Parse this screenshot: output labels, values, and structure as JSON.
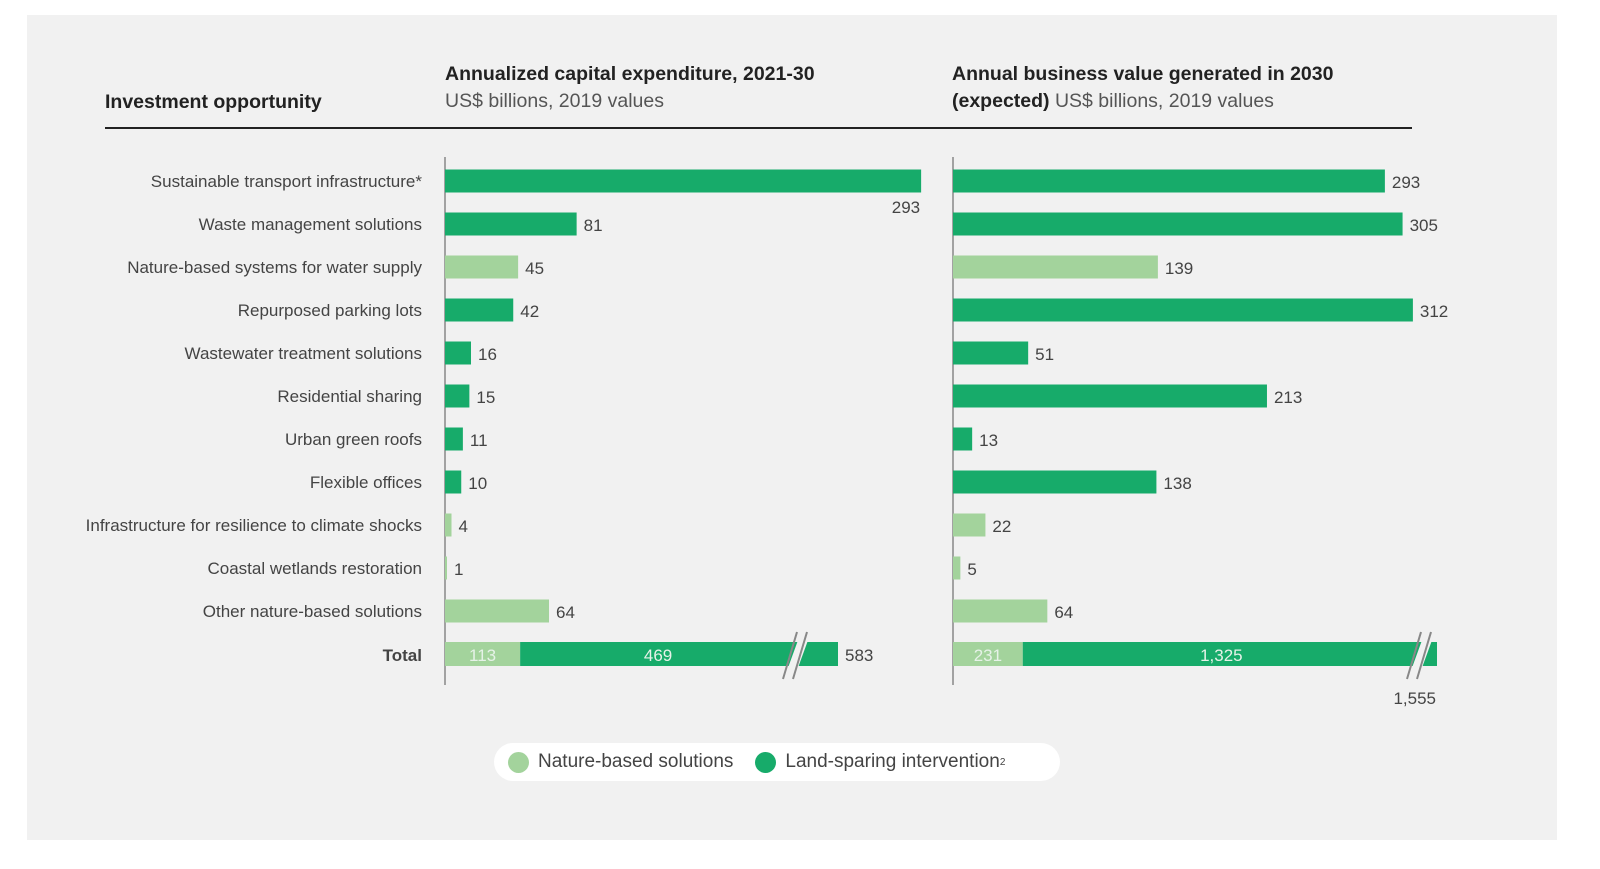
{
  "colors": {
    "nature": "#a3d39c",
    "land": "#17ab6a",
    "text": "#444444",
    "axis": "#888888",
    "break": "#888888"
  },
  "header": {
    "row_label": "Investment opportunity",
    "left_title": "Annualized capital expenditure, 2021-30",
    "left_subtitle": "US$ billions, 2019 values",
    "right_title_line1": "Annual business value generated in 2030",
    "right_title_line2": "(expected)",
    "right_subtitle": "US$ billions, 2019 values"
  },
  "legend": {
    "items": [
      {
        "label": "Nature-based solutions",
        "sup": "",
        "key": "nature"
      },
      {
        "label": "Land-sparing intervention",
        "sup": "2",
        "key": "land"
      }
    ]
  },
  "chart_data": [
    {
      "type": "bar",
      "orientation": "horizontal",
      "title": "Annualized capital expenditure, 2021-30",
      "subtitle": "US$ billions, 2019 values",
      "categories": [
        "Sustainable transport infrastructure*",
        "Waste management solutions",
        "Nature-based systems for water supply",
        "Repurposed parking lots",
        "Wastewater treatment solutions",
        "Residential sharing",
        "Urban green roofs",
        "Flexible offices",
        "Infrastructure for resilience to climate shocks",
        "Coastal wetlands restoration",
        "Other nature-based solutions"
      ],
      "values": [
        293,
        81,
        45,
        42,
        16,
        15,
        11,
        10,
        4,
        1,
        64
      ],
      "types": [
        "land",
        "land",
        "nature",
        "land",
        "land",
        "land",
        "land",
        "land",
        "nature",
        "nature",
        "nature"
      ],
      "labels": [
        "293",
        "81",
        "45",
        "42",
        "16",
        "15",
        "11",
        "10",
        "4",
        "1",
        "64"
      ],
      "total": {
        "label": "Total",
        "nature": 113,
        "land": 469,
        "sum": 583,
        "nature_label": "113",
        "land_label": "469",
        "sum_label": "583",
        "axis_break": true
      },
      "xlim": [
        0,
        293
      ]
    },
    {
      "type": "bar",
      "orientation": "horizontal",
      "title": "Annual business value generated in 2030 (expected)",
      "subtitle": "US$ billions, 2019 values",
      "categories": [
        "Sustainable transport infrastructure*",
        "Waste management solutions",
        "Nature-based systems for water supply",
        "Repurposed parking lots",
        "Wastewater treatment solutions",
        "Residential sharing",
        "Urban green roofs",
        "Flexible offices",
        "Infrastructure for resilience to climate shocks",
        "Coastal wetlands restoration",
        "Other nature-based solutions"
      ],
      "values": [
        293,
        305,
        139,
        312,
        51,
        213,
        13,
        138,
        22,
        5,
        64
      ],
      "types": [
        "land",
        "land",
        "nature",
        "land",
        "land",
        "land",
        "land",
        "land",
        "nature",
        "nature",
        "nature"
      ],
      "labels": [
        "293",
        "305",
        "139",
        "312",
        "51",
        "213",
        "13",
        "138",
        "22",
        "5",
        "64"
      ],
      "total": {
        "label": "Total",
        "nature": 231,
        "land": 1325,
        "sum": 1555,
        "nature_label": "231",
        "land_label": "1,325",
        "sum_label": "1,555",
        "axis_break": true
      },
      "xlim": [
        0,
        312
      ]
    }
  ]
}
